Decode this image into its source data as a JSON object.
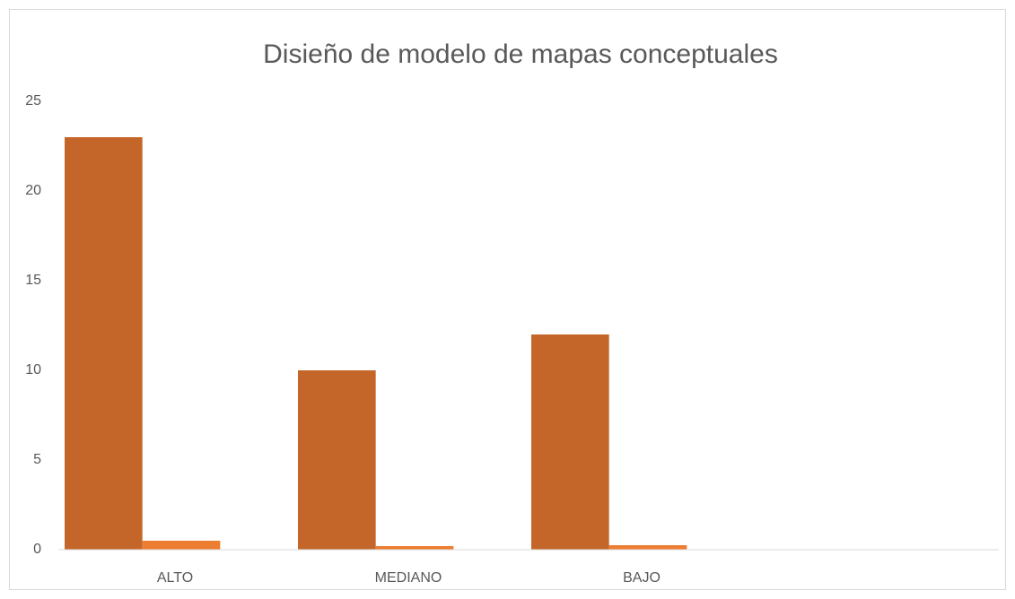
{
  "chart_data": {
    "type": "bar",
    "title": "Disieño de modelo de mapas conceptuales",
    "categories": [
      "ALTO",
      "MEDIANO",
      "BAJO",
      null
    ],
    "series": [
      {
        "color": "#c4662a",
        "values": [
          23,
          10,
          12,
          null
        ]
      },
      {
        "color": "#ed7d31",
        "values": [
          0.5,
          0.2,
          0.25,
          null
        ]
      }
    ],
    "ylim": [
      0,
      25
    ],
    "yticks": [
      0,
      5,
      10,
      15,
      20,
      25
    ],
    "grid": false
  }
}
